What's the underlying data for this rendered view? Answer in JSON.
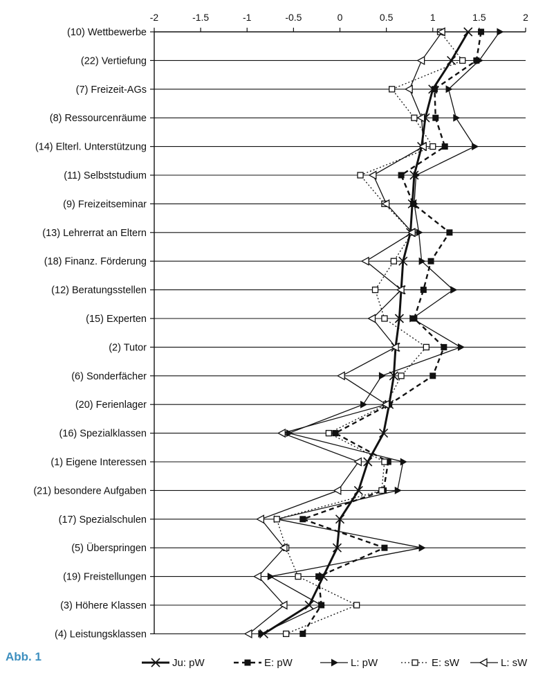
{
  "figure_label": "Abb. 1",
  "chart_data": {
    "type": "line",
    "xlim": [
      -2,
      2
    ],
    "x_ticks": [
      "-2",
      "-1.5",
      "-1",
      "-0.5",
      "0",
      "0.5",
      "1",
      "1.5",
      "2"
    ],
    "x_tick_values": [
      -2,
      -1.5,
      -1,
      -0.5,
      0,
      0.5,
      1,
      1.5,
      2
    ],
    "grid": "horizontal lines at each category",
    "legend_position": "bottom",
    "categories": [
      "(10) Wettbewerbe",
      "(22) Vertiefung",
      "(7) Freizeit-AGs",
      "(8) Ressourcenräume",
      "(14) Elterl. Unterstützung",
      "(11) Selbststudium",
      "(9) Freizeitseminar",
      "(13) Lehrerrat an Eltern",
      "(18) Finanz. Förderung",
      "(12) Beratungsstellen",
      "(15) Experten",
      "(2) Tutor",
      "(6) Sonderfächer",
      "(20) Ferienlager",
      "(16) Spezialklassen",
      "(1) Eigene Interessen",
      "(21) besondere Aufgaben",
      "(17) Spezialschulen",
      "(5) Überspringen",
      "(19) Freistellungen",
      "(3) Höhere Klassen",
      "(4) Leistungsklassen"
    ],
    "series": [
      {
        "name": "Ju: pW",
        "marker": "x",
        "line": "thick-solid",
        "color": "#111111",
        "values": [
          1.38,
          1.2,
          1.0,
          0.92,
          0.88,
          0.8,
          0.78,
          0.76,
          0.68,
          0.66,
          0.64,
          0.6,
          0.58,
          0.53,
          0.47,
          0.3,
          0.2,
          0.0,
          -0.03,
          -0.18,
          -0.33,
          -0.82
        ]
      },
      {
        "name": "E: pW",
        "marker": "filled-square",
        "line": "dashed",
        "color": "#111111",
        "values": [
          1.52,
          1.47,
          1.02,
          1.03,
          1.13,
          0.66,
          0.79,
          1.18,
          0.98,
          0.9,
          0.8,
          1.12,
          1.0,
          0.53,
          -0.05,
          0.52,
          0.47,
          -0.4,
          0.48,
          -0.23,
          -0.2,
          -0.4
        ]
      },
      {
        "name": "L: pW",
        "marker": "filled-triangle",
        "line": "solid",
        "color": "#111111",
        "values": [
          1.72,
          1.5,
          1.17,
          1.25,
          1.45,
          0.82,
          0.8,
          0.85,
          0.88,
          1.22,
          0.78,
          1.3,
          0.45,
          0.25,
          -0.55,
          0.68,
          0.62,
          -0.68,
          0.88,
          -0.75,
          -0.2,
          -0.85
        ]
      },
      {
        "name": "E: sW",
        "marker": "open-square",
        "line": "dotted",
        "color": "#111111",
        "values": [
          1.08,
          1.32,
          0.56,
          0.8,
          1.0,
          0.22,
          0.48,
          0.78,
          0.58,
          0.38,
          0.48,
          0.93,
          0.66,
          0.5,
          -0.12,
          0.48,
          0.45,
          -0.68,
          -0.58,
          -0.45,
          0.18,
          -0.58
        ]
      },
      {
        "name": "L: sW",
        "marker": "open-triangle",
        "line": "solid",
        "color": "#111111",
        "values": [
          1.1,
          0.88,
          0.75,
          0.88,
          0.9,
          0.36,
          0.5,
          0.78,
          0.28,
          0.66,
          0.35,
          0.6,
          0.02,
          0.5,
          -0.62,
          0.2,
          -0.02,
          -0.85,
          -0.6,
          -0.88,
          -0.6,
          -0.98
        ]
      }
    ]
  }
}
